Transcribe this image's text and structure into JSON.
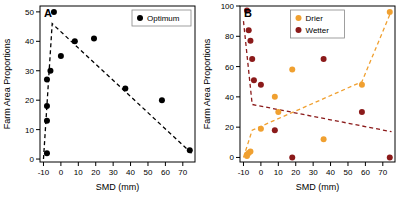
{
  "chart_data": [
    {
      "type": "scatter",
      "title": "A",
      "x_label": "SMD (mm)",
      "y_label": "Farm Area Proportions",
      "xlim": [
        -12,
        77
      ],
      "ylim": [
        -1,
        52
      ],
      "xticks": [
        -10,
        0,
        10,
        20,
        30,
        40,
        50,
        60,
        70
      ],
      "yticks": [
        0,
        10,
        20,
        30,
        40,
        50
      ],
      "legend": "top right",
      "series": [
        {
          "name": "Optimum",
          "color": "#000000",
          "marker": "circle",
          "x": [
            -8,
            -8,
            -8,
            -8,
            -6,
            -4,
            0,
            8,
            19,
            37,
            58,
            74
          ],
          "values": [
            2,
            13,
            18,
            27,
            30,
            50,
            35,
            40,
            41,
            24,
            20,
            3
          ]
        },
        {
          "type": "line",
          "line_style": "dashed",
          "color": "#000000",
          "x": [
            -10,
            -5,
            75
          ],
          "values": [
            0,
            46,
            2
          ]
        }
      ]
    },
    {
      "type": "scatter",
      "title": "B",
      "x_label": "SMD (mm)",
      "y_label": "Farm Area Proportions",
      "xlim": [
        -12,
        77
      ],
      "ylim": [
        -3,
        100
      ],
      "xticks": [
        -10,
        0,
        10,
        20,
        30,
        40,
        50,
        60,
        70
      ],
      "yticks": [
        0,
        20,
        40,
        60,
        80,
        100
      ],
      "legend": "top",
      "series": [
        {
          "name": "Drier",
          "color": "#f0a030",
          "marker": "circle",
          "x": [
            -8,
            -8,
            -7,
            -6,
            0,
            8,
            10,
            18,
            36,
            58,
            74
          ],
          "values": [
            1,
            2,
            3,
            4,
            19,
            40,
            30,
            58,
            12,
            48,
            96
          ]
        },
        {
          "name": "Wetter",
          "color": "#8b1a1a",
          "marker": "circle",
          "x": [
            -8,
            -7,
            -6,
            -5,
            -4,
            0,
            8,
            18,
            36,
            58,
            74
          ],
          "values": [
            97,
            84,
            77,
            65,
            51,
            48,
            18,
            0,
            65,
            30,
            0
          ]
        },
        {
          "type": "line",
          "line_style": "dashed",
          "color": "#f0a030",
          "x": [
            -10,
            -5,
            58,
            75
          ],
          "values": [
            0,
            18,
            50,
            97
          ]
        },
        {
          "type": "line",
          "line_style": "dashed",
          "color": "#8b1a1a",
          "x": [
            -10,
            -5,
            75
          ],
          "values": [
            90,
            35,
            17
          ]
        }
      ]
    }
  ]
}
